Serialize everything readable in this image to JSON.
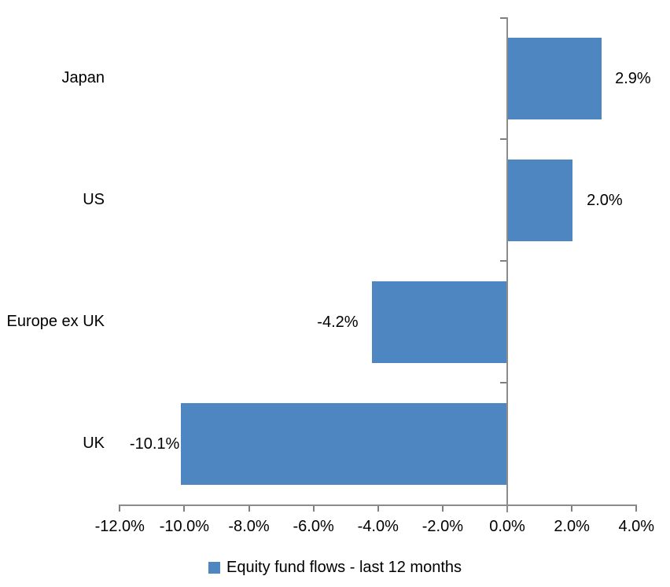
{
  "chart_data": {
    "type": "bar",
    "orientation": "horizontal",
    "categories": [
      "Japan",
      "US",
      "Europe ex UK",
      "UK"
    ],
    "series": [
      {
        "name": "Equity fund flows - last 12 months",
        "values": [
          2.9,
          2.0,
          -4.2,
          -10.1
        ],
        "labels": [
          "2.9%",
          "2.0%",
          "-4.2%",
          "-10.1%"
        ]
      }
    ],
    "xlim": [
      -12,
      4
    ],
    "x_tick_values": [
      -12,
      -10,
      -8,
      -6,
      -4,
      -2,
      0,
      2,
      4
    ],
    "x_tick_labels": [
      "-12.0%",
      "-10.0%",
      "-8.0%",
      "-6.0%",
      "-4.0%",
      "-2.0%",
      "0.0%",
      "2.0%",
      "4.0%"
    ],
    "grid": false,
    "legend_position": "bottom",
    "colors": {
      "bar": "#4d86c0",
      "axis": "#8c8c8c",
      "tick": "#7f7f7f",
      "text": "#000000",
      "background": "#ffffff"
    }
  },
  "legend": {
    "items": [
      {
        "label": "Equity fund flows - last 12 months",
        "swatch_color": "#4d86c0"
      }
    ]
  }
}
